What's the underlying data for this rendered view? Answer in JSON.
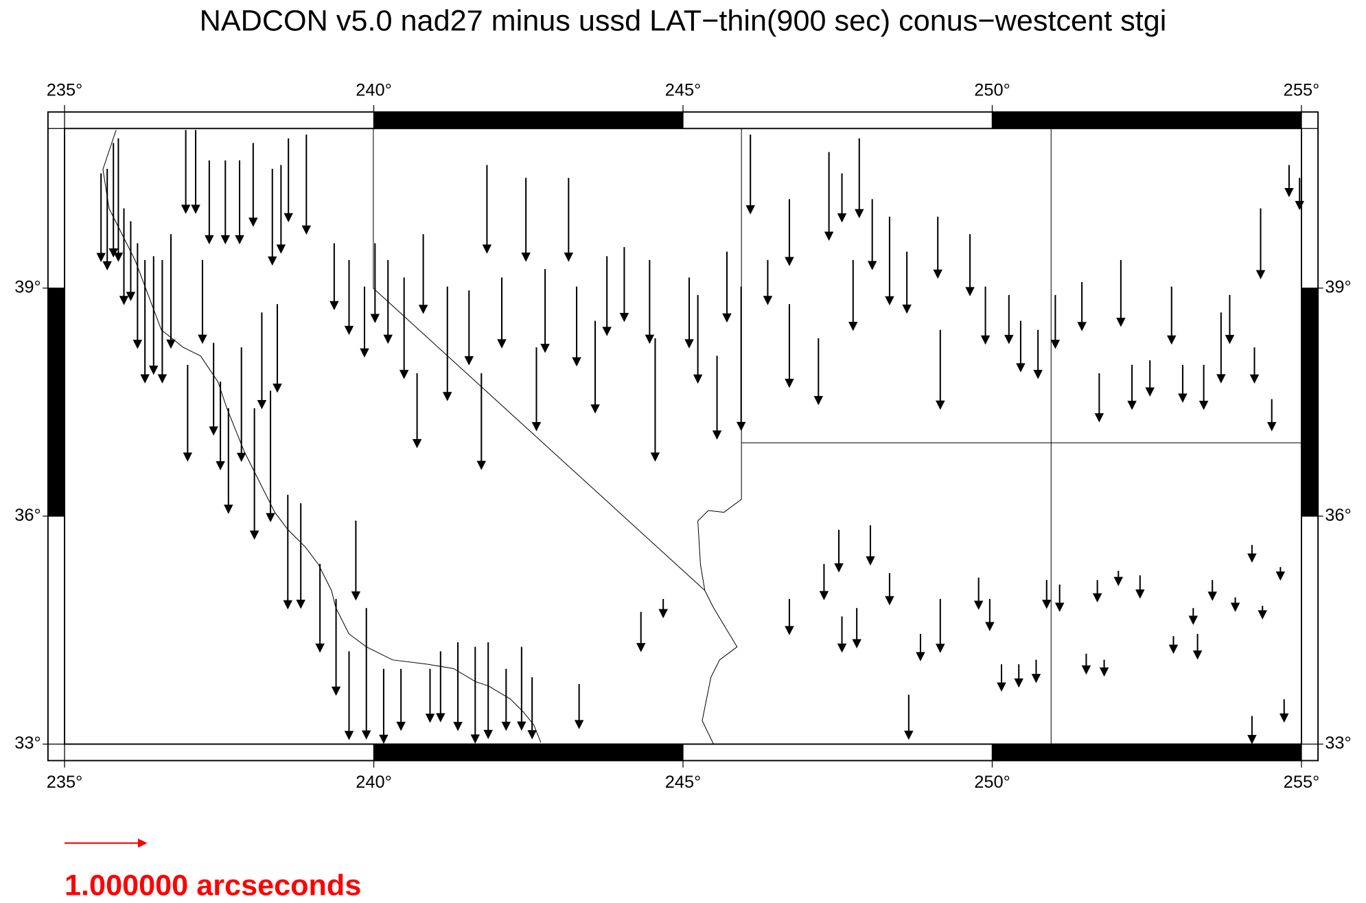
{
  "chart_data": {
    "type": "vector",
    "title": "NADCON v5.0 nad27 minus ussd LAT−thin(900 sec) conus−westcent stgi",
    "xlim": [
      235,
      255
    ],
    "ylim": [
      33,
      41.1
    ],
    "xticks": [
      {
        "value": 235,
        "label": "235°"
      },
      {
        "value": 240,
        "label": "240°"
      },
      {
        "value": 245,
        "label": "245°"
      },
      {
        "value": 250,
        "label": "250°"
      },
      {
        "value": 255,
        "label": "255°"
      }
    ],
    "yticks": [
      {
        "value": 33,
        "label": "33°"
      },
      {
        "value": 36,
        "label": "36°"
      },
      {
        "value": 39,
        "label": "39°"
      }
    ],
    "color": "#000000",
    "x": [
      235.59,
      235.69,
      235.79,
      235.87,
      235.96,
      236.07,
      236.18,
      236.3,
      236.44,
      236.58,
      236.72,
      236.96,
      237.12,
      237.34,
      237.6,
      237.83,
      238.05,
      238.36,
      238.5,
      238.62,
      238.91,
      236.99,
      237.23,
      237.41,
      237.52,
      237.65,
      237.86,
      238.07,
      238.19,
      238.33,
      238.44,
      238.61,
      238.82,
      239.13,
      239.39,
      239.6,
      239.71,
      239.88,
      240.16,
      240.44,
      240.7,
      240.91,
      241.08,
      241.36,
      241.64,
      241.85,
      242.14,
      242.39,
      242.56,
      243.32,
      239.36,
      239.6,
      239.85,
      240.02,
      240.23,
      240.49,
      240.8,
      241.19,
      241.54,
      241.83,
      241.74,
      242.07,
      242.46,
      242.63,
      242.77,
      243.15,
      243.28,
      243.58,
      243.77,
      244.05,
      244.46,
      244.55,
      245.1,
      245.24,
      245.55,
      245.71,
      245.94,
      246.09,
      246.37,
      246.72,
      246.72,
      247.19,
      247.36,
      247.57,
      247.75,
      247.85,
      248.06,
      248.34,
      248.62,
      249.12,
      249.16,
      249.64,
      249.89,
      250.27,
      250.46,
      250.74,
      251.02,
      251.45,
      251.73,
      252.08,
      252.26,
      252.55,
      252.9,
      253.08,
      253.42,
      253.7,
      253.84,
      254.24,
      254.34,
      254.52,
      254.8,
      254.97,
      244.32,
      244.68,
      246.72,
      247.28,
      247.52,
      247.57,
      247.81,
      248.03,
      248.34,
      248.65,
      248.84,
      249.16,
      249.78,
      249.96,
      250.15,
      250.43,
      250.71,
      250.88,
      251.09,
      251.52,
      251.7,
      251.81,
      252.04,
      252.39,
      252.93,
      253.25,
      253.32,
      253.56,
      253.93,
      254.2,
      254.37,
      254.66,
      254.72,
      254.2
    ],
    "y": [
      40.51,
      40.57,
      40.91,
      40.97,
      40.05,
      39.88,
      39.59,
      39.37,
      39.42,
      39.37,
      39.71,
      41.08,
      41.08,
      40.68,
      40.68,
      40.68,
      40.91,
      40.57,
      40.62,
      40.97,
      41.02,
      37.99,
      39.37,
      38.28,
      37.77,
      37.42,
      38.22,
      37.42,
      38.68,
      37.65,
      38.79,
      36.28,
      36.17,
      35.37,
      34.91,
      34.22,
      35.94,
      34.79,
      33.99,
      33.99,
      37.88,
      33.99,
      34.22,
      34.34,
      34.28,
      34.34,
      33.99,
      34.28,
      33.88,
      33.79,
      39.59,
      39.37,
      39.02,
      39.59,
      39.37,
      39.14,
      39.71,
      39.02,
      38.97,
      40.62,
      37.88,
      39.14,
      40.45,
      38.22,
      39.25,
      40.45,
      39.02,
      38.57,
      39.42,
      39.54,
      39.37,
      38.34,
      39.14,
      38.91,
      38.11,
      39.48,
      39.02,
      41.02,
      39.37,
      40.17,
      38.79,
      38.34,
      40.79,
      40.51,
      39.37,
      40.97,
      40.17,
      39.94,
      39.48,
      39.94,
      38.45,
      39.71,
      39.02,
      38.91,
      38.57,
      38.45,
      38.91,
      39.08,
      37.88,
      39.37,
      37.99,
      38.05,
      39.02,
      37.99,
      37.99,
      38.68,
      38.91,
      38.22,
      40.05,
      37.54,
      40.62,
      40.45,
      34.74,
      34.91,
      34.91,
      35.37,
      35.82,
      34.68,
      34.79,
      35.88,
      35.25,
      33.65,
      34.45,
      34.91,
      35.19,
      34.91,
      34.05,
      34.05,
      34.11,
      35.16,
      35.1,
      34.19,
      35.16,
      34.11,
      35.28,
      35.22,
      34.42,
      34.79,
      34.45,
      35.16,
      34.93,
      35.62,
      34.82,
      35.33,
      33.59,
      33.37
    ],
    "values": [
      -1.08,
      -1.24,
      -1.4,
      -1.51,
      -1.18,
      -0.97,
      -1.29,
      -1.51,
      -1.45,
      -1.51,
      -1.4,
      -1.02,
      -1.02,
      -1.02,
      -1.02,
      -1.02,
      -1.02,
      -1.18,
      -1.08,
      -1.02,
      -1.22,
      -1.18,
      -1.02,
      -1.13,
      -1.08,
      -1.29,
      -1.4,
      -1.61,
      -1.18,
      -1.61,
      -1.08,
      -1.4,
      -1.29,
      -1.08,
      -1.18,
      -1.08,
      -0.97,
      -1.61,
      -0.91,
      -0.75,
      -0.91,
      -0.65,
      -0.86,
      -1.08,
      -1.18,
      -1.18,
      -0.75,
      -1.02,
      -0.75,
      -0.54,
      -0.81,
      -0.91,
      -0.86,
      -0.97,
      -1.02,
      -1.24,
      -0.97,
      -1.4,
      -0.91,
      -1.08,
      -1.18,
      -0.86,
      -1.02,
      -1.02,
      -1.02,
      -1.02,
      -0.97,
      -1.13,
      -0.97,
      -0.91,
      -1.02,
      -1.51,
      -0.86,
      -1.08,
      -1.02,
      -0.86,
      -1.77,
      -0.97,
      -0.54,
      -0.81,
      -1.02,
      -0.81,
      -1.08,
      -0.59,
      -0.86,
      -0.97,
      -0.86,
      -1.08,
      -0.75,
      -0.75,
      -0.97,
      -0.75,
      -0.7,
      -0.59,
      -0.62,
      -0.59,
      -0.65,
      -0.59,
      -0.59,
      -0.81,
      -0.54,
      -0.43,
      -0.7,
      -0.45,
      -0.54,
      -0.86,
      -0.59,
      -0.43,
      -0.86,
      -0.38,
      -0.38,
      -0.38,
      -0.48,
      -0.22,
      -0.43,
      -0.43,
      -0.51,
      -0.43,
      -0.48,
      -0.48,
      -0.38,
      -0.54,
      -0.32,
      -0.65,
      -0.38,
      -0.38,
      -0.32,
      -0.27,
      -0.27,
      -0.34,
      -0.32,
      -0.24,
      -0.26,
      -0.19,
      -0.17,
      -0.27,
      -0.2,
      -0.19,
      -0.3,
      -0.24,
      -0.16,
      -0.2,
      -0.15,
      -0.15,
      -0.27,
      -0.33
    ],
    "scale_value": 1,
    "scale_label": "1.000000 arcseconds",
    "scale_color": "#ff0000"
  }
}
